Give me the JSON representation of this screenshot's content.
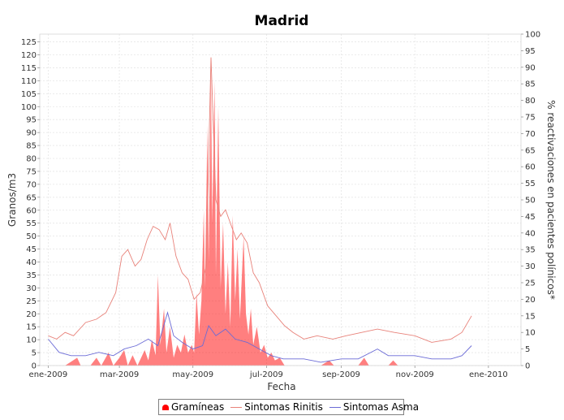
{
  "chart_data": {
    "type": "area",
    "title": "Madrid",
    "xlabel": "Fecha",
    "ylabel": "Granos/m3",
    "y2label": "% reactivaciones en pacientes polínicos*",
    "ylim": [
      0,
      128
    ],
    "y2lim": [
      0,
      100
    ],
    "xlim": [
      "2008-12-25",
      "2010-01-28"
    ],
    "x_ticks": [
      "ene-2009",
      "mar-2009",
      "may-2009",
      "jul-2009",
      "sep-2009",
      "nov-2009",
      "ene-2010"
    ],
    "y_ticks": [
      0,
      5,
      10,
      15,
      20,
      25,
      30,
      35,
      40,
      45,
      50,
      55,
      60,
      65,
      70,
      75,
      80,
      85,
      90,
      95,
      100,
      105,
      110,
      115,
      120,
      125
    ],
    "y2_ticks": [
      0,
      5,
      10,
      15,
      20,
      25,
      30,
      35,
      40,
      45,
      50,
      55,
      60,
      65,
      70,
      75,
      80,
      85,
      90,
      95,
      100
    ],
    "grid": true,
    "legend_position": "bottom",
    "series": [
      {
        "name": "Gramíneas",
        "kind": "area",
        "axis": "left",
        "color": "#ff0000",
        "points": [
          [
            "2009-01-01",
            0
          ],
          [
            "2009-01-15",
            0
          ],
          [
            "2009-01-25",
            3
          ],
          [
            "2009-01-28",
            0
          ],
          [
            "2009-02-05",
            0
          ],
          [
            "2009-02-10",
            3
          ],
          [
            "2009-02-14",
            0
          ],
          [
            "2009-02-20",
            5
          ],
          [
            "2009-02-24",
            0
          ],
          [
            "2009-03-01",
            3
          ],
          [
            "2009-03-05",
            6
          ],
          [
            "2009-03-08",
            0
          ],
          [
            "2009-03-12",
            4
          ],
          [
            "2009-03-16",
            0
          ],
          [
            "2009-03-22",
            6
          ],
          [
            "2009-03-25",
            2
          ],
          [
            "2009-03-28",
            10
          ],
          [
            "2009-03-31",
            4
          ],
          [
            "2009-04-02",
            35
          ],
          [
            "2009-04-04",
            8
          ],
          [
            "2009-04-07",
            22
          ],
          [
            "2009-04-09",
            5
          ],
          [
            "2009-04-12",
            15
          ],
          [
            "2009-04-15",
            3
          ],
          [
            "2009-04-18",
            8
          ],
          [
            "2009-04-21",
            5
          ],
          [
            "2009-04-24",
            12
          ],
          [
            "2009-04-27",
            5
          ],
          [
            "2009-04-30",
            8
          ],
          [
            "2009-05-02",
            5
          ],
          [
            "2009-05-04",
            28
          ],
          [
            "2009-05-06",
            12
          ],
          [
            "2009-05-08",
            25
          ],
          [
            "2009-05-10",
            60
          ],
          [
            "2009-05-11",
            30
          ],
          [
            "2009-05-13",
            93
          ],
          [
            "2009-05-14",
            40
          ],
          [
            "2009-05-16",
            115
          ],
          [
            "2009-05-17",
            55
          ],
          [
            "2009-05-19",
            110
          ],
          [
            "2009-05-20",
            35
          ],
          [
            "2009-05-22",
            100
          ],
          [
            "2009-05-24",
            30
          ],
          [
            "2009-05-26",
            55
          ],
          [
            "2009-05-28",
            20
          ],
          [
            "2009-05-30",
            40
          ],
          [
            "2009-06-01",
            15
          ],
          [
            "2009-06-03",
            58
          ],
          [
            "2009-06-05",
            25
          ],
          [
            "2009-06-07",
            45
          ],
          [
            "2009-06-09",
            18
          ],
          [
            "2009-06-12",
            50
          ],
          [
            "2009-06-14",
            20
          ],
          [
            "2009-06-16",
            12
          ],
          [
            "2009-06-18",
            22
          ],
          [
            "2009-06-20",
            8
          ],
          [
            "2009-06-23",
            15
          ],
          [
            "2009-06-26",
            5
          ],
          [
            "2009-06-29",
            8
          ],
          [
            "2009-07-02",
            3
          ],
          [
            "2009-07-05",
            5
          ],
          [
            "2009-07-08",
            2
          ],
          [
            "2009-07-12",
            3
          ],
          [
            "2009-07-16",
            0
          ],
          [
            "2009-07-25",
            0
          ],
          [
            "2009-08-15",
            0
          ],
          [
            "2009-08-22",
            2
          ],
          [
            "2009-08-26",
            0
          ],
          [
            "2009-09-15",
            0
          ],
          [
            "2009-09-20",
            3
          ],
          [
            "2009-09-24",
            0
          ],
          [
            "2009-10-10",
            0
          ],
          [
            "2009-10-14",
            2
          ],
          [
            "2009-10-18",
            0
          ],
          [
            "2009-12-20",
            0
          ]
        ]
      },
      {
        "name": "Sintomas Rinitis",
        "kind": "line",
        "axis": "right",
        "color": "#e8827a",
        "points": [
          [
            "2009-01-01",
            9
          ],
          [
            "2009-01-08",
            8
          ],
          [
            "2009-01-15",
            10
          ],
          [
            "2009-01-22",
            9
          ],
          [
            "2009-02-01",
            13
          ],
          [
            "2009-02-10",
            14
          ],
          [
            "2009-02-18",
            16
          ],
          [
            "2009-02-26",
            22
          ],
          [
            "2009-03-03",
            33
          ],
          [
            "2009-03-08",
            35
          ],
          [
            "2009-03-14",
            30
          ],
          [
            "2009-03-19",
            32
          ],
          [
            "2009-03-24",
            38
          ],
          [
            "2009-03-29",
            42
          ],
          [
            "2009-04-03",
            41
          ],
          [
            "2009-04-08",
            38
          ],
          [
            "2009-04-12",
            43
          ],
          [
            "2009-04-17",
            33
          ],
          [
            "2009-04-22",
            28
          ],
          [
            "2009-04-27",
            26
          ],
          [
            "2009-05-02",
            20
          ],
          [
            "2009-05-07",
            22
          ],
          [
            "2009-05-12",
            30
          ],
          [
            "2009-05-16",
            93
          ],
          [
            "2009-05-20",
            50
          ],
          [
            "2009-05-24",
            45
          ],
          [
            "2009-05-28",
            47
          ],
          [
            "2009-06-02",
            42
          ],
          [
            "2009-06-06",
            38
          ],
          [
            "2009-06-10",
            40
          ],
          [
            "2009-06-15",
            37
          ],
          [
            "2009-06-20",
            28
          ],
          [
            "2009-06-25",
            25
          ],
          [
            "2009-07-02",
            18
          ],
          [
            "2009-07-09",
            15
          ],
          [
            "2009-07-16",
            12
          ],
          [
            "2009-07-23",
            10
          ],
          [
            "2009-08-01",
            8
          ],
          [
            "2009-08-12",
            9
          ],
          [
            "2009-08-25",
            8
          ],
          [
            "2009-09-05",
            9
          ],
          [
            "2009-09-18",
            10
          ],
          [
            "2009-10-01",
            11
          ],
          [
            "2009-10-15",
            10
          ],
          [
            "2009-11-01",
            9
          ],
          [
            "2009-11-15",
            7
          ],
          [
            "2009-12-01",
            8
          ],
          [
            "2009-12-10",
            10
          ],
          [
            "2009-12-18",
            15
          ]
        ]
      },
      {
        "name": "Sintomas Asma",
        "kind": "line",
        "axis": "right",
        "color": "#6b6bd6",
        "points": [
          [
            "2009-01-01",
            8
          ],
          [
            "2009-01-10",
            4
          ],
          [
            "2009-01-20",
            3
          ],
          [
            "2009-02-01",
            3
          ],
          [
            "2009-02-12",
            4
          ],
          [
            "2009-02-24",
            3
          ],
          [
            "2009-03-05",
            5
          ],
          [
            "2009-03-15",
            6
          ],
          [
            "2009-03-25",
            8
          ],
          [
            "2009-04-02",
            6
          ],
          [
            "2009-04-10",
            16
          ],
          [
            "2009-04-15",
            9
          ],
          [
            "2009-04-22",
            7
          ],
          [
            "2009-05-01",
            5
          ],
          [
            "2009-05-09",
            6
          ],
          [
            "2009-05-14",
            12
          ],
          [
            "2009-05-20",
            9
          ],
          [
            "2009-05-28",
            11
          ],
          [
            "2009-06-05",
            8
          ],
          [
            "2009-06-15",
            7
          ],
          [
            "2009-06-25",
            5
          ],
          [
            "2009-07-05",
            3
          ],
          [
            "2009-07-15",
            2
          ],
          [
            "2009-08-01",
            2
          ],
          [
            "2009-08-15",
            1
          ],
          [
            "2009-09-01",
            2
          ],
          [
            "2009-09-15",
            2
          ],
          [
            "2009-10-01",
            5
          ],
          [
            "2009-10-10",
            3
          ],
          [
            "2009-10-20",
            3
          ],
          [
            "2009-11-01",
            3
          ],
          [
            "2009-11-15",
            2
          ],
          [
            "2009-12-01",
            2
          ],
          [
            "2009-12-10",
            3
          ],
          [
            "2009-12-18",
            6
          ]
        ]
      }
    ]
  }
}
